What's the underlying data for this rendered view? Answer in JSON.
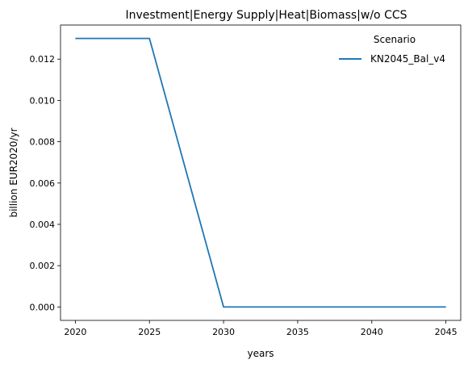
{
  "chart_data": {
    "type": "line",
    "title": "Investment|Energy Supply|Heat|Biomass|w/o CCS",
    "xlabel": "years",
    "ylabel": "billion EUR2020/yr",
    "x": [
      2020,
      2025,
      2030,
      2035,
      2040,
      2045
    ],
    "series": [
      {
        "name": "KN2045_Bal_v4",
        "values": [
          0.013,
          0.013,
          0.0,
          0.0,
          0.0,
          0.0
        ],
        "color": "#1f77b4"
      }
    ],
    "xticks": [
      "2020",
      "2025",
      "2030",
      "2035",
      "2040",
      "2045"
    ],
    "yticks": [
      "0.000",
      "0.002",
      "0.004",
      "0.006",
      "0.008",
      "0.010",
      "0.012"
    ],
    "xlim": [
      2019,
      2046
    ],
    "ylim": [
      -0.00065,
      0.01365
    ],
    "grid": false,
    "legend": {
      "title": "Scenario",
      "placement": "upper right",
      "entries": [
        "KN2045_Bal_v4"
      ]
    }
  }
}
